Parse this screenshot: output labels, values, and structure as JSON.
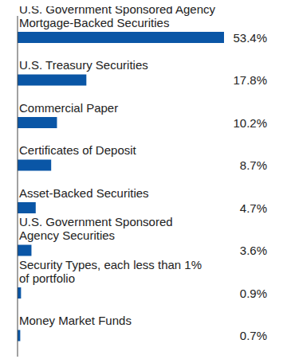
{
  "chart_data": {
    "type": "bar",
    "orientation": "horizontal",
    "categories": [
      "U.S. Government Sponsored Agency\nMortgage-Backed Securities",
      "U.S. Treasury Securities",
      "Commercial Paper",
      "Certificates of Deposit",
      "Asset-Backed Securities",
      "U.S. Government Sponsored\nAgency Securities",
      "Security Types, each less than 1%\nof portfolio",
      "Money Market Funds"
    ],
    "values": [
      53.4,
      17.8,
      10.2,
      8.7,
      4.7,
      3.6,
      0.9,
      0.7
    ],
    "value_labels": [
      "53.4%",
      "17.8%",
      "10.2%",
      "8.7%",
      "4.7%",
      "3.6%",
      "0.9%",
      "0.7%"
    ],
    "color": "#0a56a6",
    "xlim": [
      0,
      60
    ],
    "data_labels": true,
    "tick_labels": false,
    "grid": false
  }
}
